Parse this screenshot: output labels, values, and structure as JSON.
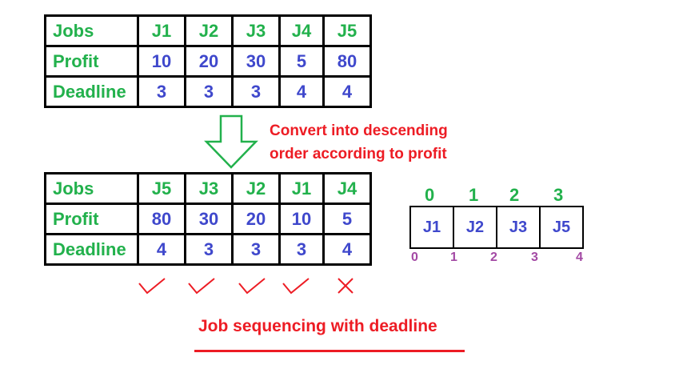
{
  "original_table": {
    "row_labels": {
      "jobs": "Jobs",
      "profit": "Profit",
      "deadline": "Deadline"
    },
    "jobs": [
      "J1",
      "J2",
      "J3",
      "J4",
      "J5"
    ],
    "profits": [
      "10",
      "20",
      "30",
      "5",
      "80"
    ],
    "deadlines": [
      "3",
      "3",
      "3",
      "4",
      "4"
    ]
  },
  "conversion_note": {
    "line1": "Convert into descending",
    "line2": "order according to profit"
  },
  "sorted_table": {
    "row_labels": {
      "jobs": "Jobs",
      "profit": "Profit",
      "deadline": "Deadline"
    },
    "jobs": [
      "J5",
      "J3",
      "J2",
      "J1",
      "J4"
    ],
    "profits": [
      "80",
      "30",
      "20",
      "10",
      "5"
    ],
    "deadlines": [
      "4",
      "3",
      "3",
      "3",
      "4"
    ],
    "selection_marks": [
      "check",
      "check",
      "check",
      "check",
      "cross"
    ]
  },
  "slots": {
    "indices_top": [
      "0",
      "1",
      "2",
      "3"
    ],
    "jobs": [
      "J1",
      "J2",
      "J3",
      "J5"
    ],
    "boundaries": [
      "0",
      "1",
      "2",
      "3",
      "4"
    ]
  },
  "caption": "Job sequencing with deadline",
  "colors": {
    "label_green": "#22b14c",
    "value_blue": "#3f48cc",
    "note_red": "#ed1c24",
    "boundary_purple": "#a349a4"
  }
}
